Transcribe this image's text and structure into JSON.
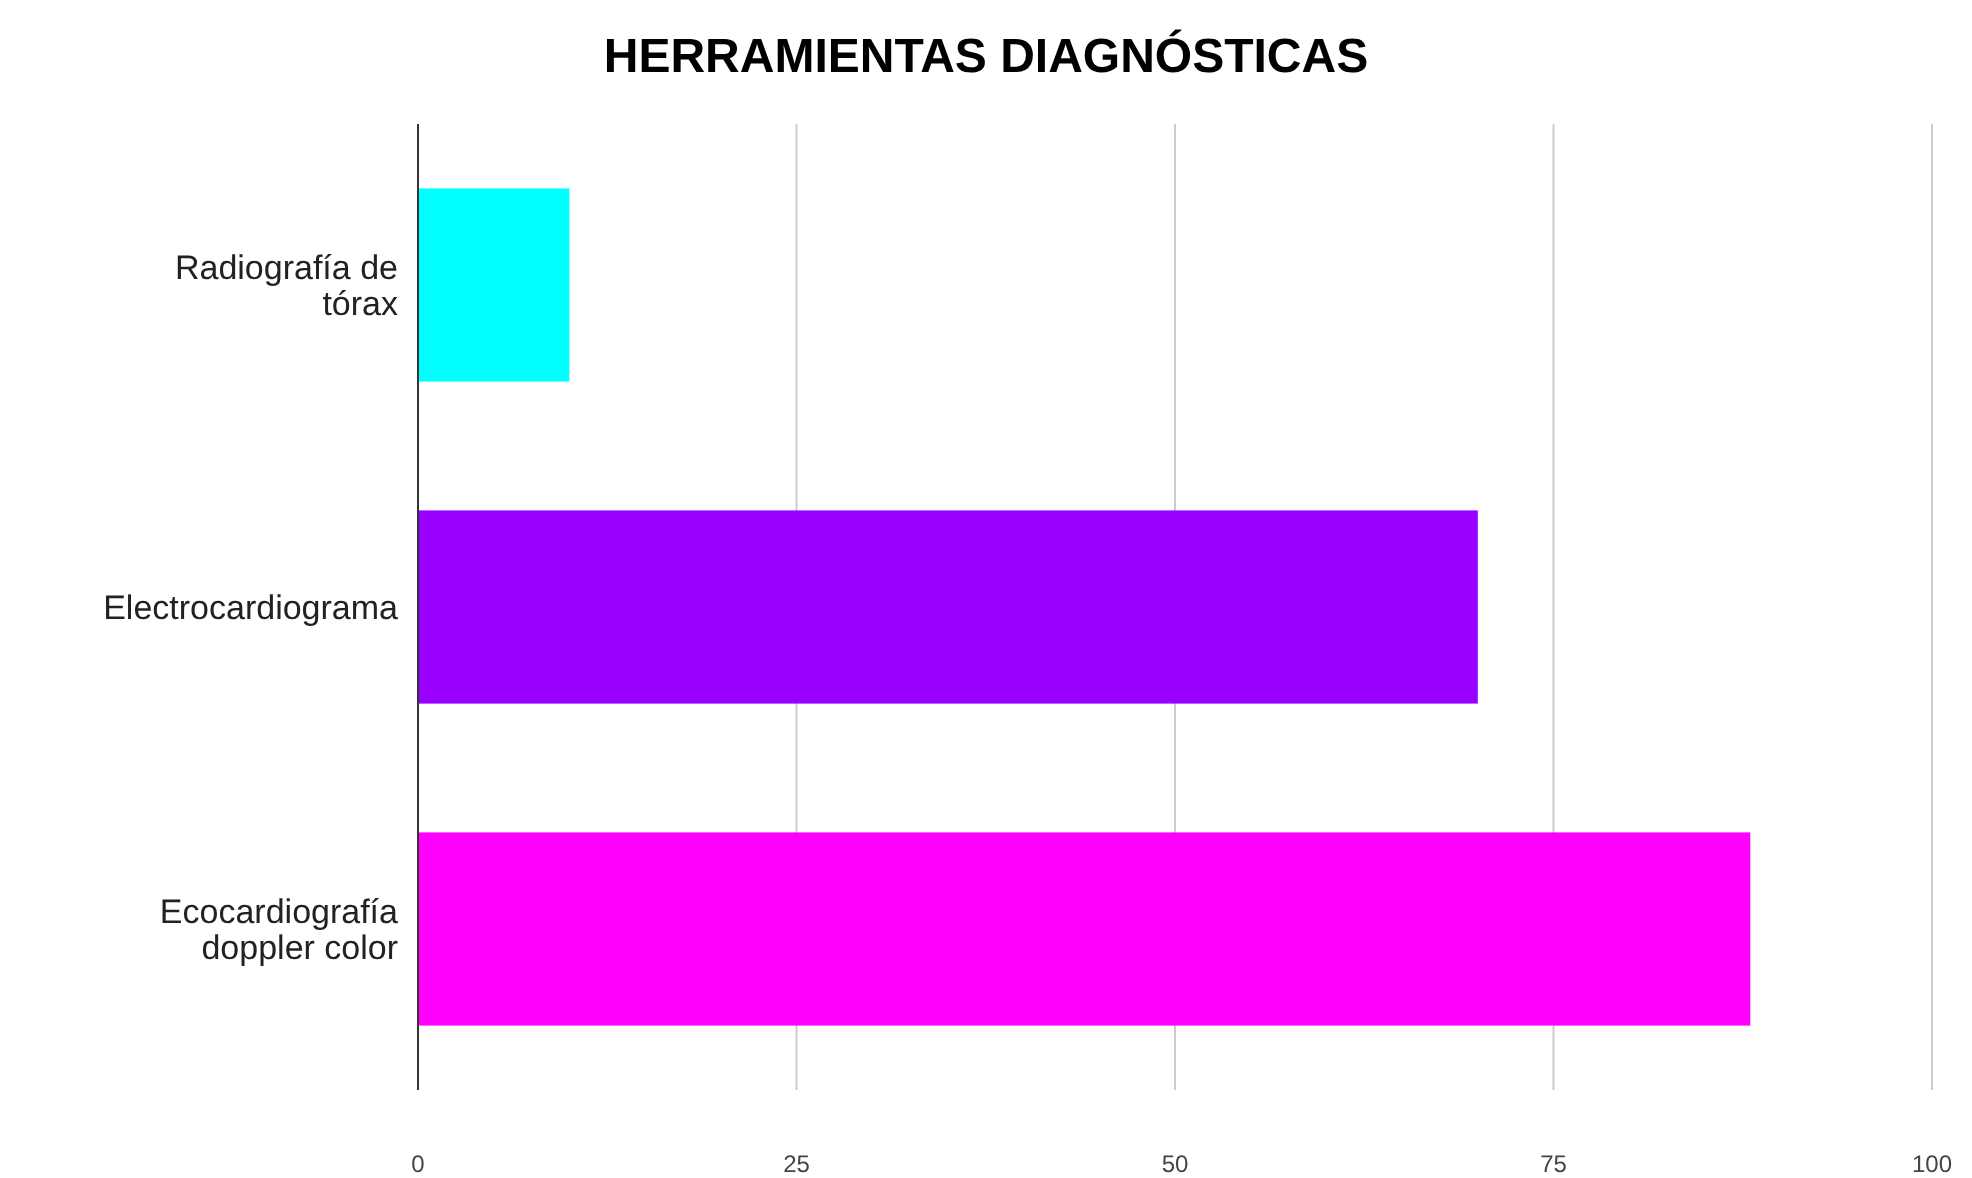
{
  "chart_data": {
    "type": "bar",
    "orientation": "horizontal",
    "title": "HERRAMIENTAS DIAGNÓSTICAS",
    "categories": [
      "Radiografía de tórax",
      "Electrocardiograma",
      "Ecocardiografía doppler color"
    ],
    "values": [
      10,
      70,
      88
    ],
    "colors": [
      "#00ffff",
      "#9900ff",
      "#ff00ff"
    ],
    "xlim": [
      0,
      100
    ],
    "xticks": [
      0,
      25,
      50,
      75,
      100
    ],
    "grid": "x"
  }
}
